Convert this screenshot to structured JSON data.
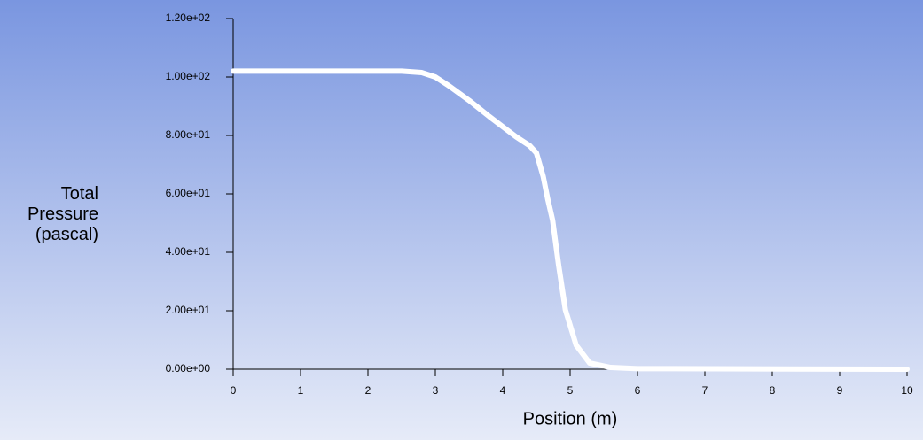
{
  "chart_data": {
    "type": "line",
    "x_label": "Position (m)",
    "y_label": "Total Pressure (pascal)",
    "x": [
      0,
      1,
      2,
      2.5,
      2.8,
      3.0,
      3.2,
      3.5,
      3.8,
      4.0,
      4.2,
      4.4,
      4.5,
      4.6,
      4.67,
      4.74,
      4.83,
      4.93,
      5.09,
      5.29,
      5.6,
      6,
      10
    ],
    "series": [
      {
        "color": "#ffffff",
        "values": [
          102,
          102,
          102,
          102,
          101.5,
          100,
          97,
          92,
          86.5,
          83,
          79.5,
          76.5,
          74,
          66,
          58,
          51,
          35.5,
          20.3,
          8.2,
          2.1,
          0.6,
          0.2,
          0
        ]
      }
    ],
    "xlim": [
      0,
      10
    ],
    "xticks": [
      0,
      1,
      2,
      3,
      4,
      5,
      6,
      7,
      8,
      9,
      10
    ],
    "ylim": [
      0,
      120
    ],
    "yticks": [
      {
        "value": 0,
        "label": "0.00e+00"
      },
      {
        "value": 20,
        "label": "2.00e+01"
      },
      {
        "value": 40,
        "label": "4.00e+01"
      },
      {
        "value": 60,
        "label": "6.00e+01"
      },
      {
        "value": 80,
        "label": "8.00e+01"
      },
      {
        "value": 100,
        "label": "1.00e+02"
      },
      {
        "value": 120,
        "label": "1.20e+02"
      }
    ],
    "grid": false
  }
}
